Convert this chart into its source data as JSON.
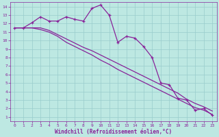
{
  "xlabel": "Windchill (Refroidissement éolien,°C)",
  "bg_color": "#bde8e2",
  "grid_color": "#99cccc",
  "line_color": "#882299",
  "xlim": [
    -0.5,
    23.5
  ],
  "ylim": [
    0.5,
    14.5
  ],
  "xticks": [
    0,
    1,
    2,
    3,
    4,
    5,
    6,
    7,
    8,
    9,
    10,
    11,
    12,
    13,
    14,
    15,
    16,
    17,
    18,
    19,
    20,
    21,
    22,
    23
  ],
  "yticks": [
    1,
    2,
    3,
    4,
    5,
    6,
    7,
    8,
    9,
    10,
    11,
    12,
    13,
    14
  ],
  "line1_x": [
    0,
    1,
    2,
    3,
    4,
    5,
    6,
    7,
    8,
    9,
    10,
    11,
    12,
    13,
    14,
    15,
    16,
    17,
    18,
    19,
    20,
    21,
    22,
    23
  ],
  "line1_y": [
    11.5,
    11.5,
    12.1,
    12.8,
    12.3,
    12.3,
    12.8,
    12.5,
    12.3,
    13.8,
    14.2,
    13.0,
    9.8,
    10.5,
    10.3,
    9.3,
    8.0,
    null,
    null,
    null,
    null,
    null,
    null,
    null
  ],
  "line2_x": [
    0,
    1,
    2,
    3,
    4,
    5,
    6,
    7,
    8,
    9,
    10,
    11,
    12,
    13,
    14,
    15,
    16,
    17,
    18,
    19,
    20,
    21,
    22,
    23
  ],
  "line2_y": [
    11.5,
    11.5,
    12.1,
    12.8,
    12.3,
    12.3,
    12.8,
    12.5,
    12.3,
    13.8,
    14.2,
    13.0,
    9.8,
    10.5,
    10.3,
    9.3,
    8.0,
    5.0,
    4.8,
    3.2,
    3.0,
    1.8,
    2.0,
    1.2
  ],
  "line3_x": [
    0,
    1,
    2,
    3,
    4,
    5,
    6,
    7,
    8,
    9,
    10,
    11,
    12,
    13,
    14,
    15,
    16,
    17,
    18,
    19,
    20,
    21,
    22,
    23
  ],
  "line3_y": [
    11.5,
    11.5,
    11.5,
    11.5,
    11.2,
    10.7,
    10.2,
    9.7,
    9.2,
    8.8,
    8.3,
    7.8,
    7.3,
    6.8,
    6.3,
    5.8,
    5.3,
    4.8,
    4.3,
    3.8,
    3.1,
    2.6,
    2.2,
    1.7
  ],
  "line4_x": [
    0,
    1,
    2,
    3,
    4,
    5,
    6,
    7,
    8,
    9,
    10,
    11,
    12,
    13,
    14,
    15,
    16,
    17,
    18,
    19,
    20,
    21,
    22,
    23
  ],
  "line4_y": [
    11.5,
    11.5,
    11.5,
    11.3,
    11.0,
    10.5,
    9.8,
    9.3,
    8.8,
    8.3,
    7.7,
    7.2,
    6.6,
    6.1,
    5.6,
    5.1,
    4.6,
    4.1,
    3.6,
    3.1,
    2.6,
    2.1,
    1.8,
    1.3
  ]
}
